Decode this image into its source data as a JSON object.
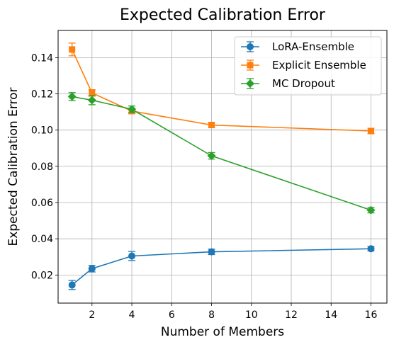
{
  "chart_data": {
    "type": "line",
    "title": "Expected Calibration Error",
    "xlabel": "Number of Members",
    "ylabel": "Expected Calibration Error",
    "xlim": [
      0.3,
      16.8
    ],
    "ylim": [
      0.0045,
      0.155
    ],
    "xticks": [
      2,
      4,
      6,
      8,
      10,
      12,
      14,
      16
    ],
    "yticks": [
      0.02,
      0.04,
      0.06,
      0.08,
      0.1,
      0.12,
      0.14
    ],
    "ytick_labels": [
      "0.02",
      "0.04",
      "0.06",
      "0.08",
      "0.10",
      "0.12",
      "0.14"
    ],
    "grid": true,
    "legend_position": "top-right",
    "series": [
      {
        "name": "LoRA-Ensemble",
        "color": "#1f77b4",
        "marker": "circle",
        "x": [
          1,
          2,
          4,
          8,
          16
        ],
        "y": [
          0.0145,
          0.0235,
          0.0305,
          0.0328,
          0.0345
        ],
        "err": [
          0.0025,
          0.0018,
          0.0025,
          0.0015,
          0.0012
        ]
      },
      {
        "name": "Explicit Ensemble",
        "color": "#ff7f0e",
        "marker": "square",
        "x": [
          1,
          2,
          4,
          8,
          16
        ],
        "y": [
          0.1445,
          0.1205,
          0.1105,
          0.1028,
          0.0995
        ],
        "err": [
          0.0035,
          0.0018,
          0.0015,
          0.0015,
          0.0015
        ]
      },
      {
        "name": "MC Dropout",
        "color": "#2ca02c",
        "marker": "diamond",
        "x": [
          1,
          2,
          4,
          8,
          16
        ],
        "y": [
          0.1185,
          0.1165,
          0.1115,
          0.0858,
          0.0558
        ],
        "err": [
          0.0022,
          0.0025,
          0.0018,
          0.0018,
          0.0015
        ]
      }
    ]
  }
}
